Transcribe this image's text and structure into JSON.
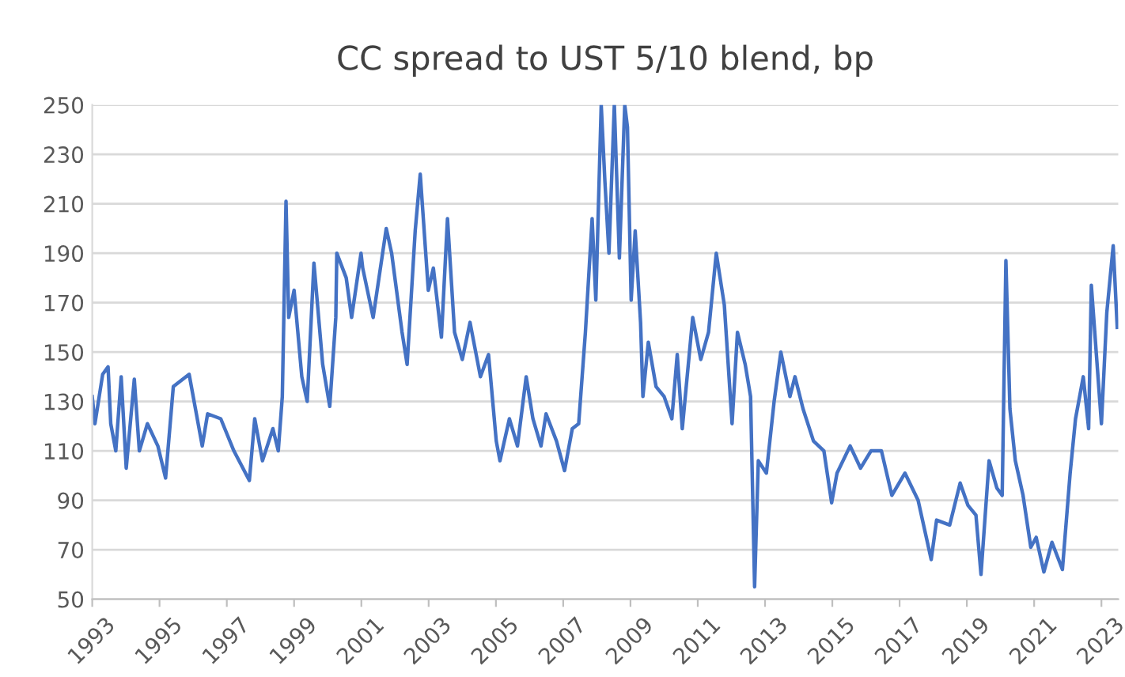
{
  "chart_data": {
    "type": "line",
    "title": "CC spread to UST 5/10 blend, bp",
    "x": [
      1993.0,
      1993.08,
      1993.31,
      1993.47,
      1993.55,
      1993.7,
      1993.86,
      1994.01,
      1994.25,
      1994.4,
      1994.64,
      1994.95,
      1995.18,
      1995.41,
      1995.88,
      1996.27,
      1996.43,
      1996.82,
      1997.21,
      1997.67,
      1997.83,
      1998.06,
      1998.37,
      1998.53,
      1998.65,
      1998.76,
      1998.84,
      1999.0,
      1999.23,
      1999.39,
      1999.59,
      1999.85,
      2000.06,
      2000.24,
      2000.27,
      2000.55,
      2000.71,
      2000.99,
      2001.04,
      2001.35,
      2001.74,
      2001.9,
      2002.21,
      2002.36,
      2002.6,
      2002.75,
      2002.99,
      2003.14,
      2003.38,
      2003.56,
      2003.77,
      2004.0,
      2004.23,
      2004.54,
      2004.78,
      2005.01,
      2005.12,
      2005.4,
      2005.64,
      2005.9,
      2006.1,
      2006.34,
      2006.49,
      2006.8,
      2007.04,
      2007.27,
      2007.46,
      2007.66,
      2007.86,
      2007.97,
      2008.13,
      2008.24,
      2008.36,
      2008.52,
      2008.67,
      2008.83,
      2008.91,
      2009.02,
      2009.14,
      2009.3,
      2009.37,
      2009.53,
      2009.76,
      2010.0,
      2010.23,
      2010.39,
      2010.54,
      2010.85,
      2011.09,
      2011.32,
      2011.55,
      2011.79,
      2012.02,
      2012.18,
      2012.41,
      2012.57,
      2012.69,
      2012.8,
      2013.04,
      2013.27,
      2013.47,
      2013.74,
      2013.89,
      2014.13,
      2014.44,
      2014.75,
      2014.98,
      2015.14,
      2015.53,
      2015.84,
      2016.15,
      2016.46,
      2016.77,
      2017.16,
      2017.55,
      2017.94,
      2018.1,
      2018.49,
      2018.8,
      2019.03,
      2019.27,
      2019.42,
      2019.66,
      2019.89,
      2020.05,
      2020.16,
      2020.28,
      2020.44,
      2020.67,
      2020.9,
      2021.06,
      2021.29,
      2021.53,
      2021.84,
      2022.07,
      2022.23,
      2022.46,
      2022.62,
      2022.7,
      2022.85,
      2023.0,
      2023.16,
      2023.35,
      2023.47
    ],
    "values": [
      132,
      121,
      141,
      144,
      121,
      110,
      140,
      103,
      139,
      110,
      121,
      112,
      99,
      136,
      141,
      112,
      125,
      123,
      110,
      98,
      123,
      106,
      119,
      110,
      132,
      211,
      164,
      175,
      140,
      130,
      186,
      145,
      128,
      164,
      190,
      180,
      164,
      190,
      184,
      164,
      200,
      190,
      158,
      145,
      199,
      222,
      175,
      184,
      156,
      204,
      158,
      147,
      162,
      140,
      149,
      114,
      106,
      123,
      112,
      140,
      123,
      112,
      125,
      114,
      102,
      119,
      121,
      158,
      204,
      171,
      250,
      219,
      190,
      250,
      188,
      250,
      241,
      171,
      199,
      162,
      132,
      154,
      136,
      132,
      123,
      149,
      119,
      164,
      147,
      158,
      190,
      169,
      121,
      158,
      145,
      132,
      55,
      106,
      101,
      130,
      150,
      132,
      140,
      127,
      114,
      110,
      89,
      101,
      112,
      103,
      110,
      110,
      92,
      101,
      90,
      66,
      82,
      80,
      97,
      88,
      84,
      60,
      106,
      95,
      92,
      187,
      127,
      106,
      92,
      71,
      75,
      61,
      73,
      62,
      101,
      123,
      140,
      119,
      177,
      149,
      121,
      166,
      193,
      160
    ],
    "color": "#4472c4",
    "xlim": [
      1993,
      2023.5
    ],
    "ylim": [
      50,
      250
    ],
    "xticks": [
      1993,
      1995,
      1997,
      1999,
      2001,
      2003,
      2005,
      2007,
      2009,
      2011,
      2013,
      2015,
      2017,
      2019,
      2021,
      2023
    ],
    "yticks": [
      50,
      70,
      90,
      110,
      130,
      150,
      170,
      190,
      210,
      230,
      250
    ],
    "grid": "y",
    "line_style": "solid",
    "marker": "none"
  }
}
